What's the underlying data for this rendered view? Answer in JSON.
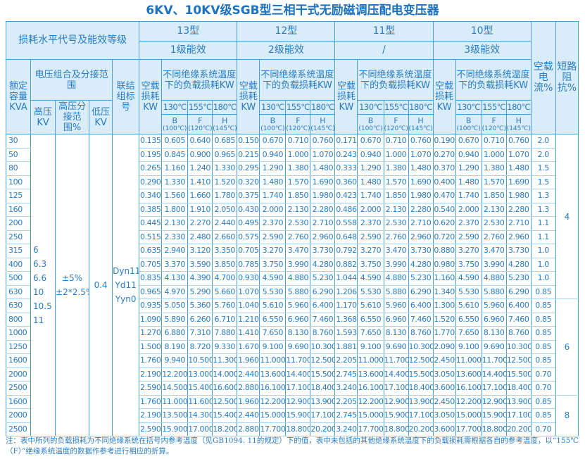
{
  "title": "6KV、10KV级SGB型三相干式无励磁调压配电变压器",
  "header": {
    "loss_level": "损耗水平代号及能效等级",
    "types": [
      {
        "name": "13型",
        "grade": "1级能效"
      },
      {
        "name": "12型",
        "grade": "2级能效"
      },
      {
        "name": "11型",
        "grade": "/"
      },
      {
        "name": "10型",
        "grade": "3级能效"
      }
    ],
    "no_load_current": "空载电流%",
    "impedance": "短路阻抗%",
    "capacity": "额定容量KVA",
    "voltage_group": "电压组合及分接范围",
    "hv": "高压KV",
    "tap": "高压分接范围%",
    "lv": "低压KV",
    "connection": "联结组标号",
    "no_load_loss": "空载损耗KW",
    "load_loss": "不同绝缘系统温度下的负载损耗KW",
    "temps": [
      "130℃",
      "155℃",
      "180℃"
    ],
    "classes": [
      {
        "letter": "B",
        "temp": "(100℃)"
      },
      {
        "letter": "F",
        "temp": "(120℃)"
      },
      {
        "letter": "H",
        "temp": "(145℃)"
      }
    ]
  },
  "table": {
    "hv": [
      "6",
      "6.3",
      "6.6",
      "10",
      "10.5",
      "11"
    ],
    "tap": [
      "±5%",
      "±2*2.5%"
    ],
    "lv": "0.4",
    "connection": [
      "Dyn11",
      "Yd11",
      "Yyn0"
    ],
    "groups": [
      {
        "impedance": "4",
        "rows": [
          {
            "capacity": "30",
            "values": [
              "0.135",
              "0.605",
              "0.640",
              "0.685",
              "0.150",
              "0.670",
              "0.710",
              "0.760",
              "0.171",
              "0.670",
              "0.710",
              "0.760",
              "0.190",
              "0.670",
              "0.710",
              "0.760"
            ],
            "current": "2.0"
          },
          {
            "capacity": "50",
            "values": [
              "0.195",
              "0.845",
              "0.900",
              "0.965",
              "0.215",
              "0.940",
              "1.000",
              "1.070",
              "0.243",
              "0.940",
              "1.000",
              "1.070",
              "0.270",
              "0.940",
              "1.000",
              "1.070"
            ],
            "current": "2.0"
          },
          {
            "capacity": "80",
            "values": [
              "0.265",
              "1.160",
              "1.240",
              "1.330",
              "0.295",
              "1.290",
              "1.380",
              "1.480",
              "0.333",
              "1.290",
              "1.380",
              "1.480",
              "0.370",
              "1.290",
              "1.380",
              "1.480"
            ],
            "current": "1.5"
          },
          {
            "capacity": "100",
            "values": [
              "0.290",
              "1.330",
              "1.410",
              "1.520",
              "0.320",
              "1.480",
              "1.570",
              "1.690",
              "0.360",
              "1.480",
              "1.570",
              "1.690",
              "0.400",
              "1.480",
              "1.570",
              "1.690"
            ],
            "current": "1.5"
          },
          {
            "capacity": "125",
            "values": [
              "0.340",
              "1.560",
              "1.660",
              "1.780",
              "0.375",
              "1.740",
              "1.850",
              "1.980",
              "0.423",
              "1.740",
              "1.850",
              "1.980",
              "0.470",
              "1.740",
              "1.850",
              "1.980"
            ],
            "current": "1.3"
          },
          {
            "capacity": "160",
            "values": [
              "0.385",
              "1.800",
              "1.910",
              "2.050",
              "0.430",
              "2.000",
              "2.130",
              "2.280",
              "0.486",
              "2.000",
              "2.130",
              "2.280",
              "0.540",
              "2.000",
              "2.130",
              "2.280"
            ],
            "current": "1.3"
          },
          {
            "capacity": "200",
            "values": [
              "0.445",
              "2.130",
              "2.270",
              "2.440",
              "0.495",
              "2.370",
              "2.530",
              "2.710",
              "0.558",
              "2.370",
              "2.530",
              "2.710",
              "0.620",
              "2.370",
              "2.530",
              "2.710"
            ],
            "current": "1.1"
          },
          {
            "capacity": "250",
            "values": [
              "0.515",
              "2.330",
              "2.480",
              "2.660",
              "0.575",
              "2.590",
              "2.760",
              "2.960",
              "0.648",
              "2.590",
              "2.760",
              "2.960",
              "0.720",
              "2.590",
              "2.760",
              "2.960"
            ],
            "current": "1.1"
          },
          {
            "capacity": "315",
            "values": [
              "0.635",
              "2.940",
              "3.120",
              "3.350",
              "0.705",
              "3.270",
              "3.470",
              "3.730",
              "0.792",
              "3.270",
              "3.470",
              "3.730",
              "0.880",
              "3.270",
              "3.470",
              "3.730"
            ],
            "current": "1.0"
          },
          {
            "capacity": "400",
            "values": [
              "0.705",
              "3.370",
              "3.590",
              "3.850",
              "0.785",
              "3.750",
              "3.990",
              "4.280",
              "0.882",
              "3.750",
              "3.990",
              "4.280",
              "0.980",
              "3.750",
              "3.990",
              "4.280"
            ],
            "current": "1.0"
          },
          {
            "capacity": "500",
            "values": [
              "0.835",
              "4.130",
              "4.390",
              "4.700",
              "0.930",
              "4.590",
              "4.880",
              "5.230",
              "1.044",
              "4.590",
              "4.880",
              "5.230",
              "1.160",
              "4.590",
              "4.880",
              "5.230"
            ],
            "current": "1.0"
          },
          {
            "capacity": "630",
            "values": [
              "0.965",
              "4.970",
              "5.290",
              "5.660",
              "1.070",
              "5.530",
              "5.880",
              "6.290",
              "1.206",
              "5.530",
              "5.880",
              "6.290",
              "1.340",
              "5.530",
              "5.880",
              "6.290"
            ],
            "current": "0.85"
          }
        ]
      },
      {
        "impedance": "6",
        "rows": [
          {
            "capacity": "630",
            "values": [
              "0.935",
              "5.050",
              "5.360",
              "5.760",
              "1.040",
              "5.610",
              "5.960",
              "6.400",
              "1.170",
              "5.610",
              "5.960",
              "6.400",
              "1.300",
              "5.610",
              "5.960",
              "6.400"
            ],
            "current": "0.85"
          },
          {
            "capacity": "800",
            "values": [
              "1.090",
              "5.890",
              "6.260",
              "6.710",
              "1.210",
              "6.550",
              "6.960",
              "7.460",
              "1.368",
              "6.550",
              "6.960",
              "7.460",
              "1.520",
              "6.550",
              "6.960",
              "7.460"
            ],
            "current": "0.85"
          },
          {
            "capacity": "1000",
            "values": [
              "1.270",
              "6.880",
              "7.310",
              "7.880",
              "1.410",
              "7.650",
              "8.130",
              "8.760",
              "1.593",
              "7.650",
              "8.130",
              "8.760",
              "1.770",
              "7.650",
              "8.130",
              "8.760"
            ],
            "current": "0.85"
          },
          {
            "capacity": "1250",
            "values": [
              "1.500",
              "8.190",
              "8.720",
              "9.330",
              "1.670",
              "9.100",
              "9.690",
              "10.300",
              "1.881",
              "9.100",
              "9.690",
              "10.300",
              "2.090",
              "9.100",
              "9.690",
              "10.300"
            ],
            "current": "0.85"
          },
          {
            "capacity": "1600",
            "values": [
              "1.760",
              "9.940",
              "10.500",
              "11.300",
              "1.960",
              "11.000",
              "11.700",
              "12.500",
              "2.205",
              "11.000",
              "11.700",
              "12.500",
              "2.450",
              "11.000",
              "11.700",
              "12.500"
            ],
            "current": "0.85"
          },
          {
            "capacity": "2000",
            "values": [
              "2.190",
              "12.200",
              "13.000",
              "14.000",
              "2.440",
              "13.600",
              "14.400",
              "15.500",
              "2.745",
              "13.600",
              "14.400",
              "15.500",
              "3.050",
              "13.600",
              "14.400",
              "15.500"
            ],
            "current": "0.70"
          },
          {
            "capacity": "2500",
            "values": [
              "2.590",
              "14.500",
              "15.400",
              "16.600",
              "2.880",
              "16.100",
              "17.100",
              "18.400",
              "3.240",
              "16.100",
              "17.100",
              "18.400",
              "3.600",
              "16.100",
              "17.100",
              "18.400"
            ],
            "current": "0.70"
          }
        ]
      },
      {
        "impedance": "8",
        "rows": [
          {
            "capacity": "1600",
            "values": [
              "1.760",
              "11.000",
              "11.600",
              "12.500",
              "1.960",
              "12.200",
              "12.900",
              "13.900",
              "2.205",
              "12.200",
              "12.900",
              "13.900",
              "2.450",
              "12.200",
              "12.900",
              "13.900"
            ],
            "current": "0.85"
          },
          {
            "capacity": "2000",
            "values": [
              "2.190",
              "13.500",
              "14.300",
              "15.400",
              "2.440",
              "15.000",
              "15.900",
              "17.100",
              "2.745",
              "15.000",
              "15.900",
              "17.100",
              "3.050",
              "15.000",
              "15.900",
              "17.100"
            ],
            "current": "0.85"
          },
          {
            "capacity": "2500",
            "values": [
              "2.590",
              "15.900",
              "17.000",
              "18.200",
              "2.880",
              "17.700",
              "18.800",
              "20.200",
              "3.240",
              "17.700",
              "18.800",
              "20.200",
              "3.600",
              "17.700",
              "18.800",
              "20.200"
            ],
            "current": "0.70"
          }
        ]
      }
    ]
  },
  "note": "注：表中所列的负载损耗为不同绝缘系统在括号内参考温度（见GB1094. 11的规定）下的值，表中未包括的其他绝缘系统温度下的负载损耗需根据各自的参考温度，以“155℃（F）”绝缘系统温度的数据作参考进行相应的折算。"
}
